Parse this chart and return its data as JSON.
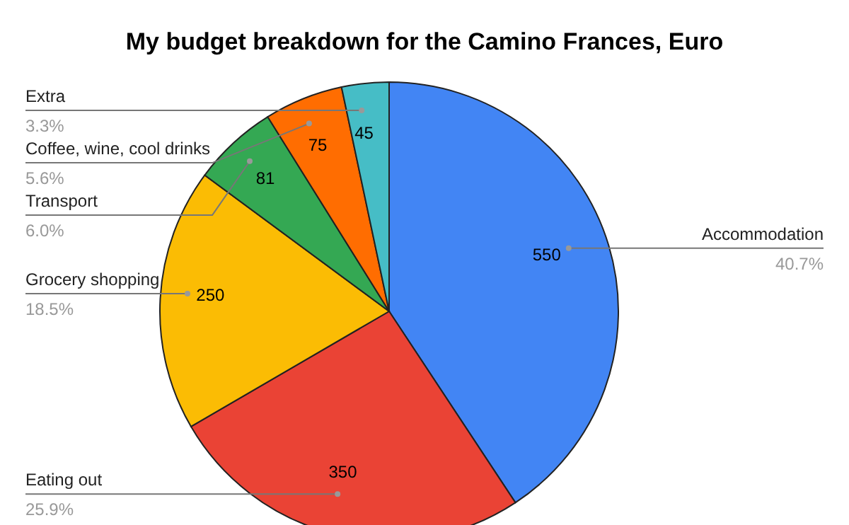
{
  "chart_data": {
    "type": "pie",
    "title": "My budget breakdown for the Camino Frances, Euro",
    "categories": [
      "Accommodation",
      "Eating out",
      "Grocery shopping",
      "Transport",
      "Coffee, wine, cool drinks",
      "Extra"
    ],
    "values": [
      550,
      350,
      250,
      81,
      75,
      45
    ],
    "colors": [
      "#4285f4",
      "#ea4335",
      "#fbbc04",
      "#34a853",
      "#ff6d01",
      "#46bdc6"
    ],
    "annotations": [
      "40.7%",
      "25.9%",
      "18.5%",
      "6.0%",
      "5.6%",
      "3.3%"
    ],
    "data_labels": true
  }
}
